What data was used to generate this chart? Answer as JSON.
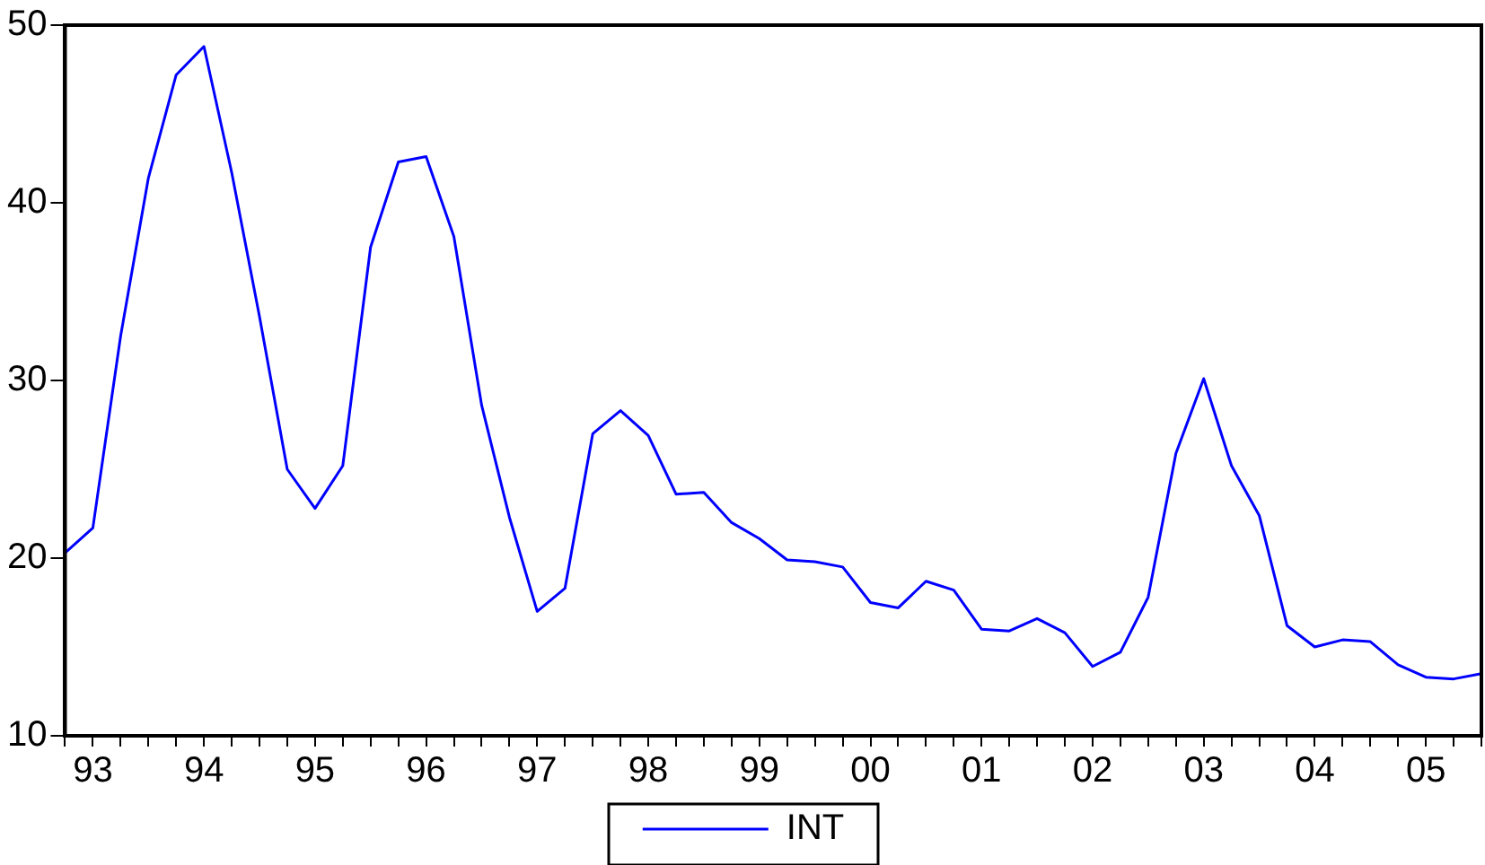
{
  "chart_data": {
    "type": "line",
    "categories": [
      null,
      "93",
      null,
      null,
      null,
      "94",
      null,
      null,
      null,
      "95",
      null,
      null,
      null,
      "96",
      null,
      null,
      null,
      "97",
      null,
      null,
      null,
      "98",
      null,
      null,
      null,
      "99",
      null,
      null,
      null,
      "00",
      null,
      null,
      null,
      "01",
      null,
      null,
      null,
      "02",
      null,
      null,
      null,
      "03",
      null,
      null,
      null,
      "04",
      null,
      null,
      null,
      "05",
      null,
      null
    ],
    "series": [
      {
        "name": "INT",
        "color": "#0000ff",
        "values": [
          20.3,
          21.7,
          32.5,
          41.4,
          47.2,
          48.8,
          41.7,
          33.6,
          25.0,
          22.8,
          25.2,
          37.5,
          42.3,
          42.6,
          38.1,
          28.6,
          22.3,
          17.0,
          18.3,
          27.0,
          28.3,
          26.9,
          23.6,
          23.7,
          22.0,
          21.1,
          19.9,
          19.8,
          19.5,
          17.5,
          17.2,
          18.7,
          18.2,
          16.0,
          15.9,
          16.6,
          15.8,
          13.9,
          14.7,
          17.8,
          25.9,
          30.1,
          25.2,
          22.4,
          16.2,
          15.0,
          15.4,
          15.3,
          14.0,
          13.3,
          13.2,
          13.5
        ]
      }
    ],
    "ylim": [
      10,
      50
    ],
    "yticks": [
      10,
      20,
      30,
      40,
      50
    ],
    "grid": false,
    "legend": "bottom",
    "marker": "none",
    "line_style": "solid"
  }
}
